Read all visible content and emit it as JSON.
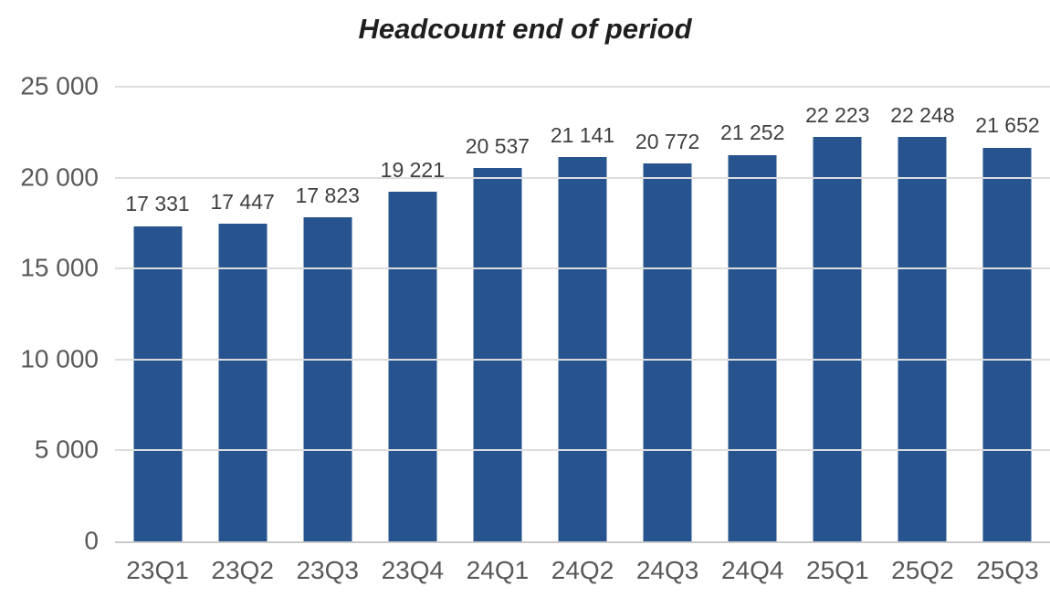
{
  "chart_data": {
    "type": "bar",
    "title": "Headcount end of period",
    "categories": [
      "23Q1",
      "23Q2",
      "23Q3",
      "23Q4",
      "24Q1",
      "24Q2",
      "24Q3",
      "24Q4",
      "25Q1",
      "25Q2",
      "25Q3"
    ],
    "values": [
      17331,
      17447,
      17823,
      19221,
      20537,
      21141,
      20772,
      21252,
      22223,
      22248,
      21652
    ],
    "value_labels": [
      "17 331",
      "17 447",
      "17 823",
      "19 221",
      "20 537",
      "21 141",
      "20 772",
      "21 252",
      "22 223",
      "22 248",
      "21 652"
    ],
    "y_ticks": [
      {
        "value": 25000,
        "label": "25 000"
      },
      {
        "value": 20000,
        "label": "20 000"
      },
      {
        "value": 15000,
        "label": "15 000"
      },
      {
        "value": 10000,
        "label": "10 000"
      },
      {
        "value": 5000,
        "label": "5 000"
      },
      {
        "value": 0,
        "label": "0"
      }
    ],
    "ylim": [
      0,
      25000
    ],
    "xlabel": "",
    "ylabel": "",
    "grid": true,
    "legend": false,
    "bar_color": "#27548E",
    "gridline_color": "#DDDDDD",
    "baseline_color": "#C9C9C9",
    "axis_label_color": "#595959",
    "data_label_color": "#3F3F3F",
    "title_color": "#1F1F1F"
  }
}
